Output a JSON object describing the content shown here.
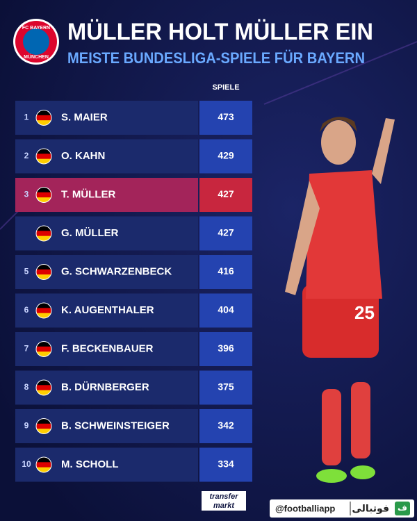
{
  "logo": {
    "top": "FC BAYERN",
    "bottom": "MÜNCHEN"
  },
  "header": {
    "title": "MÜLLER HOLT MÜLLER EIN",
    "subtitle": "MEISTE BUNDESLIGA-SPIELE FÜR BAYERN"
  },
  "table": {
    "column_label": "SPIELE",
    "highlight_row": 2,
    "rows": [
      {
        "rank": "1",
        "name": "S. MAIER",
        "value": 473
      },
      {
        "rank": "2",
        "name": "O. KAHN",
        "value": 429
      },
      {
        "rank": "3",
        "name": "T. MÜLLER",
        "value": 427
      },
      {
        "rank": null,
        "name": "G. MÜLLER",
        "value": 427
      },
      {
        "rank": "5",
        "name": "G. SCHWARZENBECK",
        "value": 416
      },
      {
        "rank": "6",
        "name": "K. AUGENTHALER",
        "value": 404
      },
      {
        "rank": "7",
        "name": "F. BECKENBAUER",
        "value": 396
      },
      {
        "rank": "8",
        "name": "B. DÜRNBERGER",
        "value": 375
      },
      {
        "rank": "9",
        "name": "B. SCHWEINSTEIGER",
        "value": 342
      },
      {
        "rank": "10",
        "name": "M. SCHOLL",
        "value": 334
      }
    ]
  },
  "footer": {
    "source_top": "transfer",
    "source_bottom": "markt",
    "handle": "@footballiapp",
    "brand": "فوتبالی",
    "brand_icon": "ف"
  }
}
